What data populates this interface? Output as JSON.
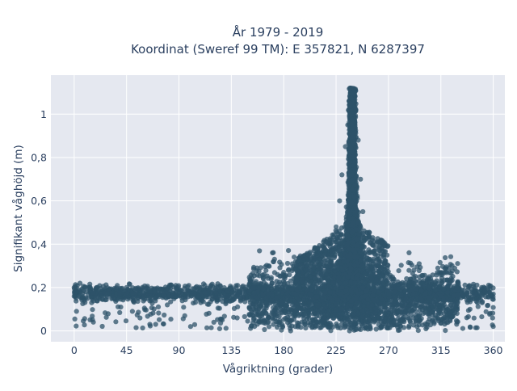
{
  "chart_data": {
    "type": "scatter",
    "title": [
      "År 1979 - 2019",
      "Koordinat (Sweref 99 TM): E 357821, N 6287397"
    ],
    "xlabel": "Vågriktning (grader)",
    "ylabel": "Signifikant våghöjd (m)",
    "xlim": [
      -20,
      370
    ],
    "ylim": [
      -0.05,
      1.18
    ],
    "x_ticks": [
      0,
      45,
      90,
      135,
      180,
      225,
      270,
      315,
      360
    ],
    "x_tick_labels": [
      "0",
      "45",
      "90",
      "135",
      "180",
      "225",
      "270",
      "315",
      "360"
    ],
    "y_ticks": [
      0,
      0.2,
      0.4,
      0.6,
      0.8,
      1.0
    ],
    "y_tick_labels": [
      "0",
      "0,2",
      "0,4",
      "0,6",
      "0,8",
      "1"
    ],
    "grid": true,
    "marker_color": "#2e5369",
    "plot_background": "#e5e8f0",
    "series": [
      {
        "points_sample": [
          [
            0,
            0.16
          ],
          [
            0,
            0.2
          ],
          [
            2,
            0.09
          ],
          [
            5,
            0.22
          ],
          [
            10,
            0.18
          ],
          [
            15,
            0.13
          ],
          [
            20,
            0.2
          ],
          [
            30,
            0.17
          ],
          [
            40,
            0.11
          ],
          [
            45,
            0.2
          ],
          [
            50,
            0.09
          ],
          [
            60,
            0.16
          ],
          [
            65,
            0.03
          ],
          [
            70,
            0.03
          ],
          [
            80,
            0.12
          ],
          [
            90,
            0.18
          ],
          [
            95,
            0.07
          ],
          [
            100,
            0.02
          ],
          [
            110,
            0.14
          ],
          [
            120,
            0.04
          ],
          [
            125,
            0.01
          ],
          [
            135,
            0.2
          ],
          [
            140,
            0.06
          ],
          [
            150,
            0.18
          ],
          [
            160,
            0.04
          ],
          [
            170,
            0.22
          ],
          [
            180,
            0.25
          ],
          [
            190,
            0.02
          ],
          [
            200,
            0.3
          ],
          [
            210,
            0.18
          ],
          [
            215,
            0.35
          ],
          [
            220,
            0.42
          ],
          [
            225,
            0.48
          ],
          [
            228,
            0.6
          ],
          [
            230,
            0.72
          ],
          [
            233,
            0.85
          ],
          [
            235,
            0.95
          ],
          [
            237,
            1.05
          ],
          [
            238,
            1.12
          ],
          [
            240,
            1.1
          ],
          [
            242,
            1.02
          ],
          [
            244,
            0.88
          ],
          [
            246,
            0.7
          ],
          [
            248,
            0.55
          ],
          [
            250,
            0.42
          ],
          [
            255,
            0.32
          ],
          [
            260,
            0.3
          ],
          [
            265,
            0.25
          ],
          [
            270,
            0.22
          ],
          [
            275,
            0.18
          ],
          [
            280,
            0.05
          ],
          [
            290,
            0.2
          ],
          [
            300,
            0.08
          ],
          [
            310,
            0.21
          ],
          [
            315,
            0.16
          ],
          [
            320,
            0.06
          ],
          [
            330,
            0.22
          ],
          [
            340,
            0.1
          ],
          [
            350,
            0.2
          ],
          [
            360,
            0.02
          ],
          [
            360,
            0.17
          ]
        ]
      }
    ]
  }
}
